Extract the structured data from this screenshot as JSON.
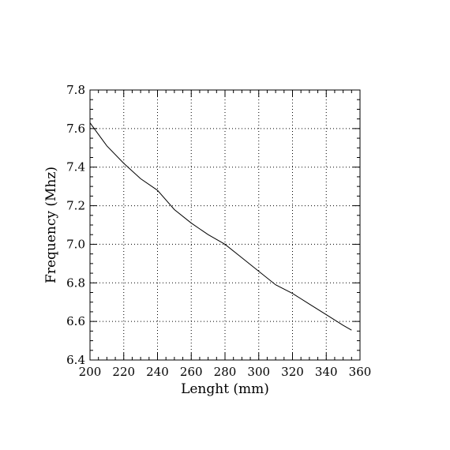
{
  "chart_data": {
    "type": "line",
    "title": "",
    "xlabel": "Lenght (mm)",
    "ylabel": "Frequency (Mhz)",
    "xlim": [
      200,
      360
    ],
    "ylim": [
      6.4,
      7.8
    ],
    "xticks": [
      200,
      220,
      240,
      260,
      280,
      300,
      320,
      340,
      360
    ],
    "yticks": [
      6.4,
      6.6,
      6.8,
      7.0,
      7.2,
      7.4,
      7.6,
      7.8
    ],
    "xtick_labels": [
      "200",
      "220",
      "240",
      "260",
      "280",
      "300",
      "320",
      "340",
      "360"
    ],
    "ytick_labels": [
      "6.4",
      "6.6",
      "6.8",
      "7.0",
      "7.2",
      "7.4",
      "7.6",
      "7.8"
    ],
    "grid": true,
    "grid_style": "dotted",
    "line_color": "#000000",
    "series": [
      {
        "x": [
          200,
          210,
          220,
          230,
          240,
          250,
          260,
          270,
          280,
          290,
          300,
          310,
          320,
          330,
          340,
          350,
          355
        ],
        "values": [
          7.63,
          7.51,
          7.42,
          7.34,
          7.28,
          7.18,
          7.11,
          7.05,
          7.0,
          6.93,
          6.86,
          6.79,
          6.745,
          6.69,
          6.635,
          6.58,
          6.555
        ]
      }
    ]
  }
}
